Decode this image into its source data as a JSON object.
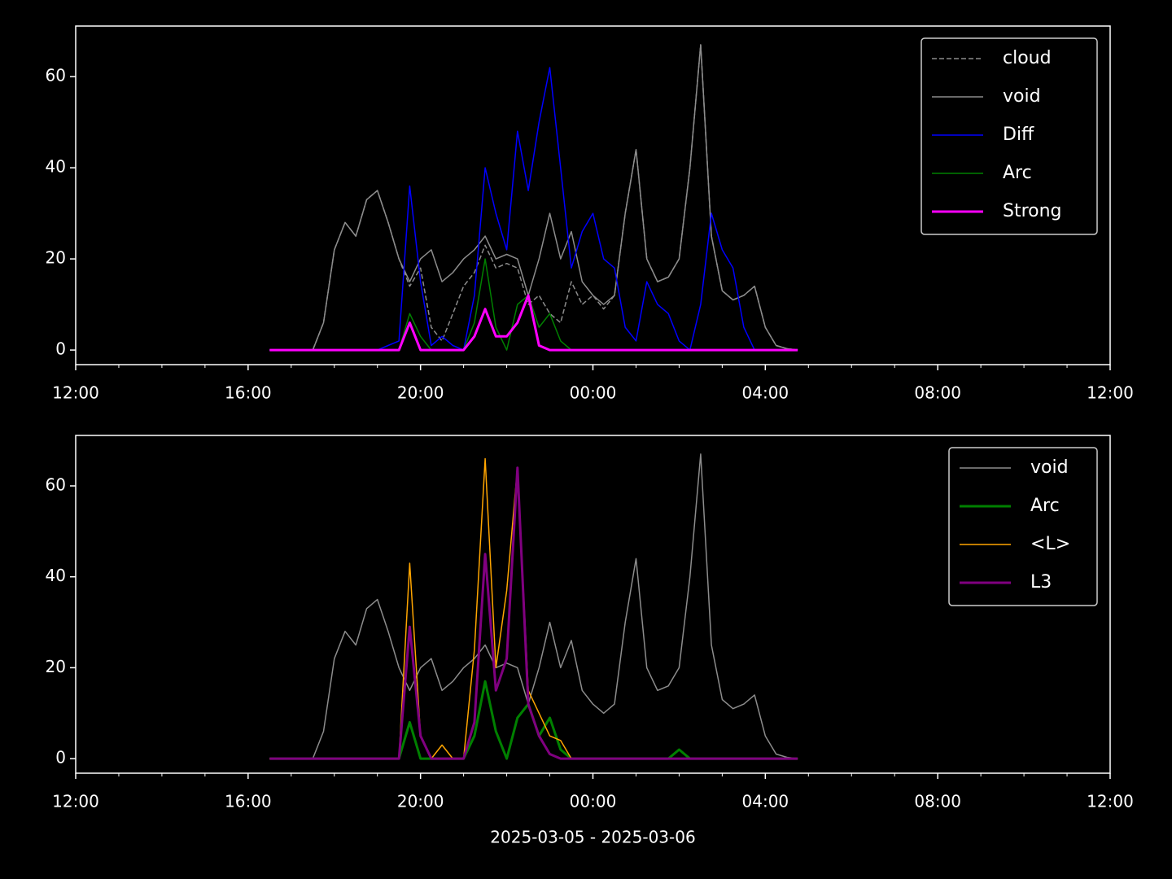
{
  "chart_data": [
    {
      "type": "line",
      "legend": "upper right",
      "x": [
        4.5,
        4.75,
        5,
        5.25,
        5.5,
        5.75,
        6,
        6.25,
        6.5,
        6.75,
        7,
        7.25,
        7.5,
        7.75,
        8,
        8.25,
        8.5,
        8.75,
        9,
        9.25,
        9.5,
        9.75,
        10,
        10.25,
        10.5,
        10.75,
        11,
        11.25,
        11.5,
        11.75,
        12,
        12.25,
        12.5,
        12.75,
        13,
        13.25,
        13.5,
        13.75,
        14,
        14.25,
        14.5,
        14.75,
        15,
        15.25,
        15.5,
        15.75,
        16,
        16.25,
        16.5,
        16.75
      ],
      "xlim": [
        0,
        24
      ],
      "xticks": [
        {
          "value": 0,
          "label": "12:00"
        },
        {
          "value": 4,
          "label": "16:00"
        },
        {
          "value": 8,
          "label": "20:00"
        },
        {
          "value": 12,
          "label": "00:00"
        },
        {
          "value": 16,
          "label": "04:00"
        },
        {
          "value": 20,
          "label": "08:00"
        },
        {
          "value": 24,
          "label": "12:00"
        }
      ],
      "xminorticks": [
        1,
        2,
        3,
        5,
        6,
        7,
        9,
        10,
        11,
        13,
        14,
        15,
        17,
        18,
        19,
        21,
        22,
        23
      ],
      "ylim": [
        -3.2,
        71.1
      ],
      "yticks": [
        0,
        20,
        40,
        60
      ],
      "series": [
        {
          "name": "cloud",
          "color": "#8c8c8c",
          "linestyle": "dashed",
          "linewidth": 1.5,
          "values": [
            0,
            0,
            0,
            0,
            0,
            6,
            22,
            28,
            25,
            33,
            35,
            28,
            20,
            14,
            18,
            5,
            2,
            8,
            14,
            17,
            23,
            18,
            19,
            18,
            10,
            12,
            8,
            6,
            15,
            10,
            12,
            9,
            12,
            30,
            44,
            20,
            15,
            16,
            20,
            40,
            67,
            25,
            13,
            11,
            12,
            14,
            5,
            1,
            0.3,
            0
          ]
        },
        {
          "name": "void",
          "color": "#8c8c8c",
          "linestyle": "solid",
          "linewidth": 1.5,
          "values": [
            0,
            0,
            0,
            0,
            0,
            6,
            22,
            28,
            25,
            33,
            35,
            28,
            20,
            15,
            20,
            22,
            15,
            17,
            20,
            22,
            25,
            20,
            21,
            20,
            12,
            20,
            30,
            20,
            26,
            15,
            12,
            10,
            12,
            30,
            44,
            20,
            15,
            16,
            20,
            40,
            67,
            25,
            13,
            11,
            12,
            14,
            5,
            1,
            0.3,
            0
          ]
        },
        {
          "name": "Diff",
          "color": "#0000ff",
          "linestyle": "solid",
          "linewidth": 1.5,
          "values": [
            0,
            0,
            0,
            0,
            0,
            0,
            0,
            0,
            0,
            0,
            0,
            1,
            2,
            36,
            15,
            1,
            3,
            1,
            0,
            12,
            40,
            30,
            22,
            48,
            35,
            50,
            62,
            40,
            18,
            26,
            30,
            20,
            18,
            5,
            2,
            15,
            10,
            8,
            2,
            0,
            10,
            30,
            22,
            18,
            5,
            0,
            0,
            0,
            0,
            0
          ]
        },
        {
          "name": "Arc",
          "color": "#008000",
          "linestyle": "solid",
          "linewidth": 1.5,
          "values": [
            0,
            0,
            0,
            0,
            0,
            0,
            0,
            0,
            0,
            0,
            0,
            0,
            0,
            8,
            3,
            0,
            0,
            0,
            0,
            6,
            20,
            5,
            0,
            10,
            12,
            5,
            8,
            2,
            0,
            0,
            0,
            0,
            0,
            0,
            0,
            0,
            0,
            0,
            0,
            0,
            0,
            0,
            0,
            0,
            0,
            0,
            0,
            0,
            0,
            0
          ]
        },
        {
          "name": "Strong",
          "color": "#ff00ff",
          "linestyle": "solid",
          "linewidth": 3,
          "values": [
            0,
            0,
            0,
            0,
            0,
            0,
            0,
            0,
            0,
            0,
            0,
            0,
            0,
            6,
            0,
            0,
            0,
            0,
            0,
            3,
            9,
            3,
            3,
            6,
            12,
            1,
            0,
            0,
            0,
            0,
            0,
            0,
            0,
            0,
            0,
            0,
            0,
            0,
            0,
            0,
            0,
            0,
            0,
            0,
            0,
            0,
            0,
            0,
            0,
            0
          ]
        }
      ]
    },
    {
      "type": "line",
      "legend": "upper right",
      "xlabel": "2025-03-05 - 2025-03-06",
      "x": [
        4.5,
        4.75,
        5,
        5.25,
        5.5,
        5.75,
        6,
        6.25,
        6.5,
        6.75,
        7,
        7.25,
        7.5,
        7.75,
        8,
        8.25,
        8.5,
        8.75,
        9,
        9.25,
        9.5,
        9.75,
        10,
        10.25,
        10.5,
        10.75,
        11,
        11.25,
        11.5,
        11.75,
        12,
        12.25,
        12.5,
        12.75,
        13,
        13.25,
        13.5,
        13.75,
        14,
        14.25,
        14.5,
        14.75,
        15,
        15.25,
        15.5,
        15.75,
        16,
        16.25,
        16.5,
        16.75
      ],
      "xlim": [
        0,
        24
      ],
      "xticks": [
        {
          "value": 0,
          "label": "12:00"
        },
        {
          "value": 4,
          "label": "16:00"
        },
        {
          "value": 8,
          "label": "20:00"
        },
        {
          "value": 12,
          "label": "00:00"
        },
        {
          "value": 16,
          "label": "04:00"
        },
        {
          "value": 20,
          "label": "08:00"
        },
        {
          "value": 24,
          "label": "12:00"
        }
      ],
      "xminorticks": [
        1,
        2,
        3,
        5,
        6,
        7,
        9,
        10,
        11,
        13,
        14,
        15,
        17,
        18,
        19,
        21,
        22,
        23
      ],
      "ylim": [
        -3.2,
        71.1
      ],
      "yticks": [
        0,
        20,
        40,
        60
      ],
      "series": [
        {
          "name": "void",
          "color": "#8c8c8c",
          "linestyle": "solid",
          "linewidth": 1.5,
          "values": [
            0,
            0,
            0,
            0,
            0,
            6,
            22,
            28,
            25,
            33,
            35,
            28,
            20,
            15,
            20,
            22,
            15,
            17,
            20,
            22,
            25,
            20,
            21,
            20,
            12,
            20,
            30,
            20,
            26,
            15,
            12,
            10,
            12,
            30,
            44,
            20,
            15,
            16,
            20,
            40,
            67,
            25,
            13,
            11,
            12,
            14,
            5,
            1,
            0.3,
            0
          ]
        },
        {
          "name": "Arc",
          "color": "#008000",
          "linestyle": "solid",
          "linewidth": 3,
          "values": [
            0,
            0,
            0,
            0,
            0,
            0,
            0,
            0,
            0,
            0,
            0,
            0,
            0,
            8,
            0,
            0,
            0,
            0,
            0,
            5,
            17,
            6,
            0,
            9,
            12,
            5,
            9,
            2,
            0,
            0,
            0,
            0,
            0,
            0,
            0,
            0,
            0,
            0,
            2,
            0,
            0,
            0,
            0,
            0,
            0,
            0,
            0,
            0,
            0,
            0
          ]
        },
        {
          "name": "<L>",
          "color": "#ffa500",
          "linestyle": "solid",
          "linewidth": 1.5,
          "values": [
            0,
            0,
            0,
            0,
            0,
            0,
            0,
            0,
            0,
            0,
            0,
            0,
            0,
            43,
            5,
            0,
            3,
            0,
            0,
            24,
            66,
            20,
            37,
            64,
            15,
            10,
            5,
            4,
            0,
            0,
            0,
            0,
            0,
            0,
            0,
            0,
            0,
            0,
            0,
            0,
            0,
            0,
            0,
            0,
            0,
            0,
            0,
            0,
            0,
            0
          ]
        },
        {
          "name": "L3",
          "color": "#800080",
          "linestyle": "solid",
          "linewidth": 3,
          "values": [
            0,
            0,
            0,
            0,
            0,
            0,
            0,
            0,
            0,
            0,
            0,
            0,
            0,
            29,
            5,
            0,
            0,
            0,
            0,
            8,
            45,
            15,
            22,
            64,
            12,
            5,
            1,
            0,
            0,
            0,
            0,
            0,
            0,
            0,
            0,
            0,
            0,
            0,
            0,
            0,
            0,
            0,
            0,
            0,
            0,
            0,
            0,
            0,
            0,
            0
          ]
        }
      ]
    }
  ]
}
